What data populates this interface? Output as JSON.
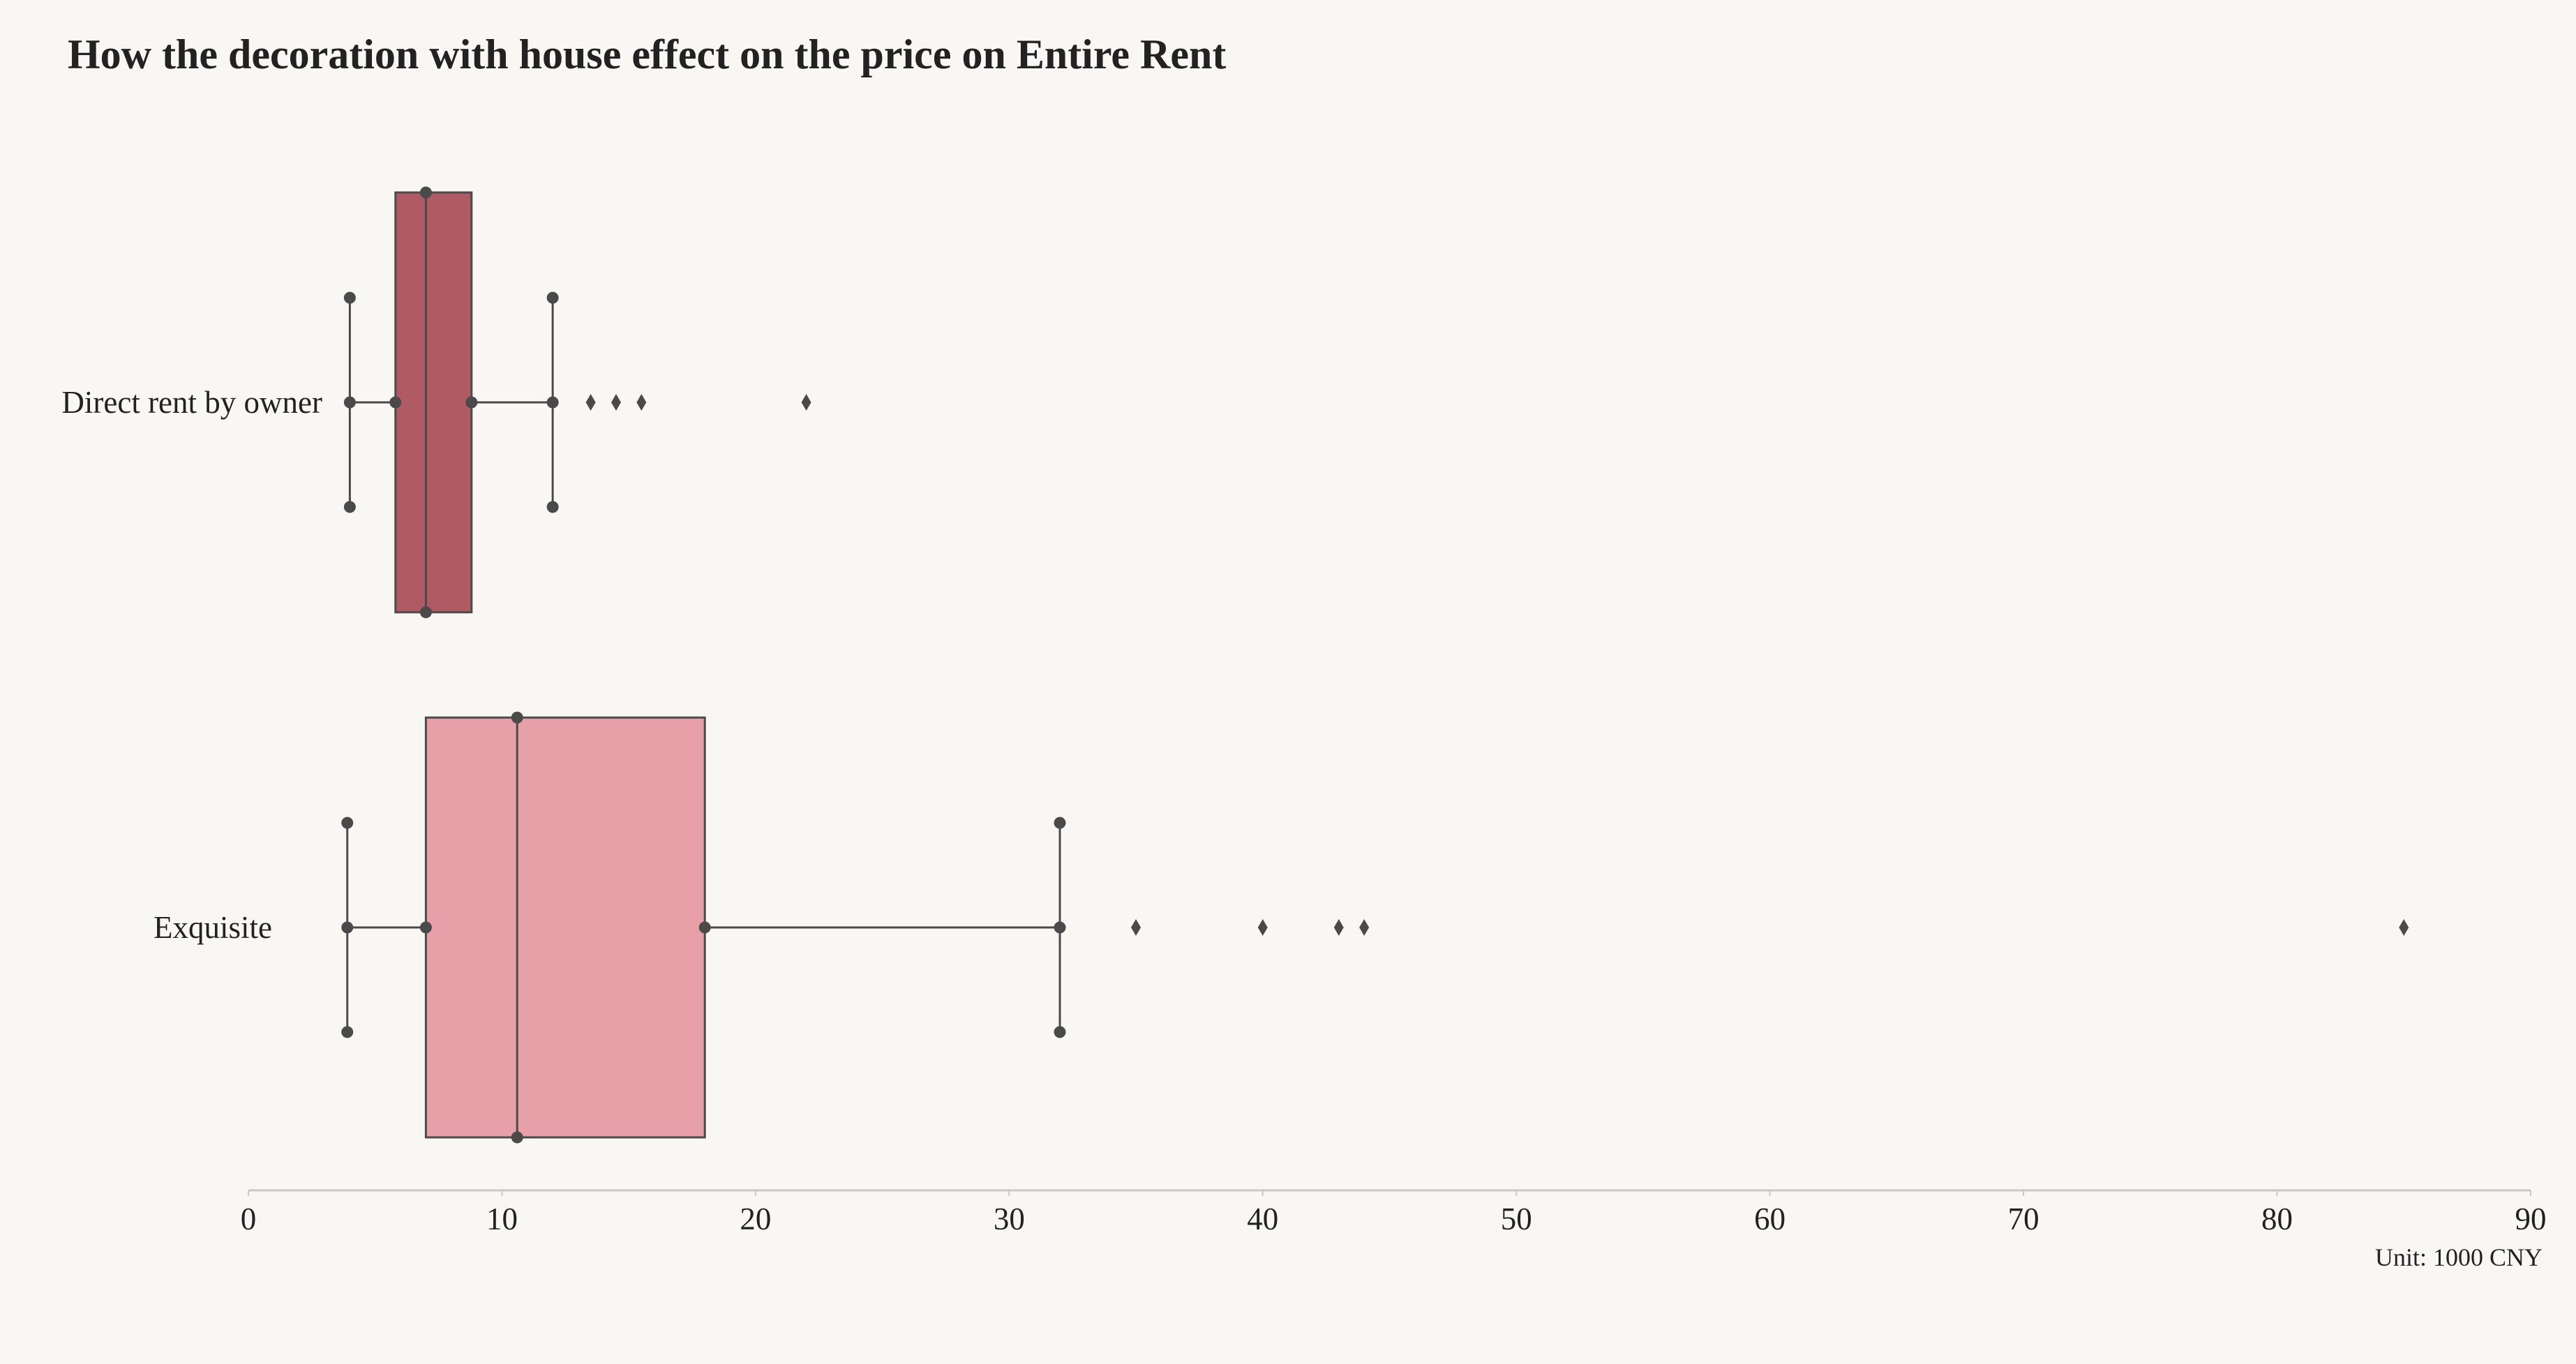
{
  "chart_data": {
    "type": "box",
    "title": "How the decoration with house effect on the price on Entire Rent",
    "xlabel": "",
    "ylabel": "",
    "unit_note": "Unit: 1000 CNY",
    "xlim": [
      0,
      90
    ],
    "xticks": [
      0,
      10,
      20,
      30,
      40,
      50,
      60,
      70,
      80,
      90
    ],
    "orientation": "horizontal",
    "grid": false,
    "categories": [
      "Direct rent by owner",
      "Exquisite"
    ],
    "series": [
      {
        "category": "Direct rent by owner",
        "whisker_low": 4,
        "q1": 5.8,
        "median": 7,
        "q3": 8.8,
        "whisker_high": 12,
        "outliers": [
          13.5,
          14.5,
          15.5,
          22
        ],
        "color": "#b05a63"
      },
      {
        "category": "Exquisite",
        "whisker_low": 3.9,
        "q1": 7,
        "median": 10.6,
        "q3": 18,
        "whisker_high": 32,
        "outliers": [
          35,
          40,
          43,
          44,
          85
        ],
        "color": "#e7a0a7"
      }
    ],
    "colors": {
      "background": "#f8f7f4",
      "line": "#4a4a4a",
      "axis": "#c8c8c8"
    }
  }
}
